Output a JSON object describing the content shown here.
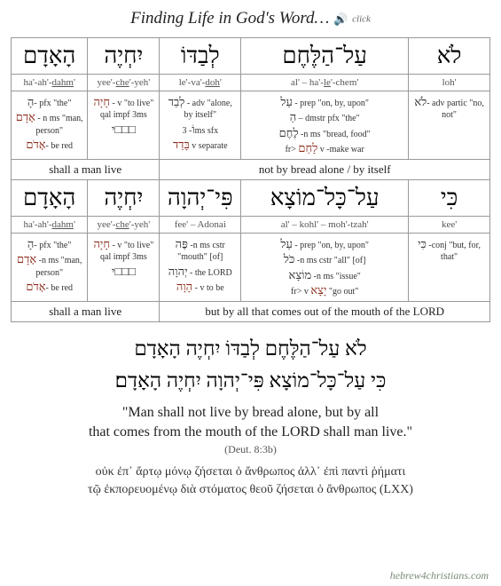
{
  "title": "Finding Life in God's Word…",
  "click_label": "click",
  "row1": {
    "cells": [
      {
        "heb": "הָאָדָם",
        "translit": "ha'-ah'-<u>dahm</u>'",
        "gloss": "<span class='heb-inline'>הָ</span>- pfx \"the\"<br><span class='heb-inline red'>אָדָם</span> - n ms \"man, person\"<br><span class='heb-inline red'>אָדֹם</span>- be red"
      },
      {
        "heb": "יִחְיֶה",
        "translit": "yee'-<u>che</u>'-yeh'",
        "gloss": "<span class='heb-inline red'>חָיָה</span> - v \"to live\"<br>qal impf 3ms<br><span class='heb-inline'>□□□י</span>"
      },
      {
        "heb": "לְבַדּוֹ",
        "translit": "le'-va'-<u>doh</u>'",
        "gloss": "<span class='heb-inline'>לְבַד</span> - adv \"alone, by itself\"<br><span class='heb-inline'>וֹ</span>- 3ms sfx<br><span class='heb-inline red'>בָּדַד</span> v separate"
      },
      {
        "heb": "עַל־הַלֶּחֶם",
        "translit": "al' – ha'-<u>le</u>'-chem'",
        "gloss": "<span class='heb-inline'>עַל</span> - prep \"on, by, upon\"<br><span class='heb-inline'>הַ</span> – dmstr pfx \"the\"<br><span class='heb-inline'>לֶחֶם</span> -n ms \"bread, food\"<br>fr&gt; <span class='heb-inline red'>לָחַם</span> v -make war"
      },
      {
        "heb": "לֹא",
        "translit": "loh'",
        "gloss": "<span class='heb-inline'>לֹא</span>- adv partic \"no, not\""
      }
    ],
    "phrases": [
      {
        "span": 2,
        "text": "shall a man live"
      },
      {
        "span": 3,
        "text": "not by bread alone / by itself"
      }
    ]
  },
  "row2": {
    "cells": [
      {
        "heb": "הָאָדָם",
        "translit": "ha'-ah'-<u>dahm</u>'",
        "gloss": "<span class='heb-inline'>הָ</span>- pfx \"the\"<br><span class='heb-inline red'>אָדָם</span> -n ms \"man, person\"<br><span class='heb-inline red'>אָדֹם</span>- be red"
      },
      {
        "heb": "יִחְיֶה",
        "translit": "yee'-<u>che</u>'-yeh'",
        "gloss": "<span class='heb-inline red'>חָיָה</span> - v \"to live\"<br>qal impf 3ms<br><span class='heb-inline'>□□□י</span>"
      },
      {
        "heb": "פִּי־יְהוָה",
        "translit": "fee' – Adonai",
        "gloss": "<span class='heb-inline'>פֶּה</span> -n ms cstr \"mouth\" [of]<br><span class='heb-inline'>יְהוָה</span> - the LORD<br><span class='heb-inline red'>הָוָה</span> - v to be"
      },
      {
        "heb": "עַל־כָּל־מוֹצָא",
        "translit": "al' – kohl' – moh'-tzah'",
        "gloss": "<span class='heb-inline'>עַל</span> - prep \"on, by, upon\"<br><span class='heb-inline'>כֹּל</span> -n ms cstr \"all\" [of]<br><span class='heb-inline'>מוֹצָא</span> -n ms \"issue\"<br>fr&gt; v <span class='heb-inline red'>יָצָא</span> \"go out\""
      },
      {
        "heb": "כִּי",
        "translit": "kee'",
        "gloss": "<span class='heb-inline'>כִּי</span> -conj \"but, for, that\""
      }
    ],
    "phrases": [
      {
        "span": 2,
        "text": "shall a man live"
      },
      {
        "span": 3,
        "text": "but by all that comes out of the mouth of the LORD"
      }
    ]
  },
  "verse_hebrew_l1": "לֹא עַל־הַלֶּחֶם לְבַדּוֹ יִחְיֶה הָאָדָם",
  "verse_hebrew_l2": "כִּי עַל־כָּל־מוֹצָא פִּי־יְהוָה יִחְיֶה הָאָדָם׃",
  "verse_english_l1": "\"Man shall not live by bread alone, but by all",
  "verse_english_l2": "that comes from the mouth of the LORD shall man live.\"",
  "verse_ref": "(Deut. 8:3b)",
  "greek_l1": "οὐκ ἐπ᾽ ἄρτῳ μόνῳ ζήσεται ὁ ἄνθρωπος ἀλλ᾽ ἐπὶ παντὶ ῥήματι",
  "greek_l2": "τῷ ἐκπορευομένῳ διὰ στόματος θεοῦ ζήσεται ὁ ἄνθρωπος (LXX)",
  "footer": "hebrew4christians.com"
}
